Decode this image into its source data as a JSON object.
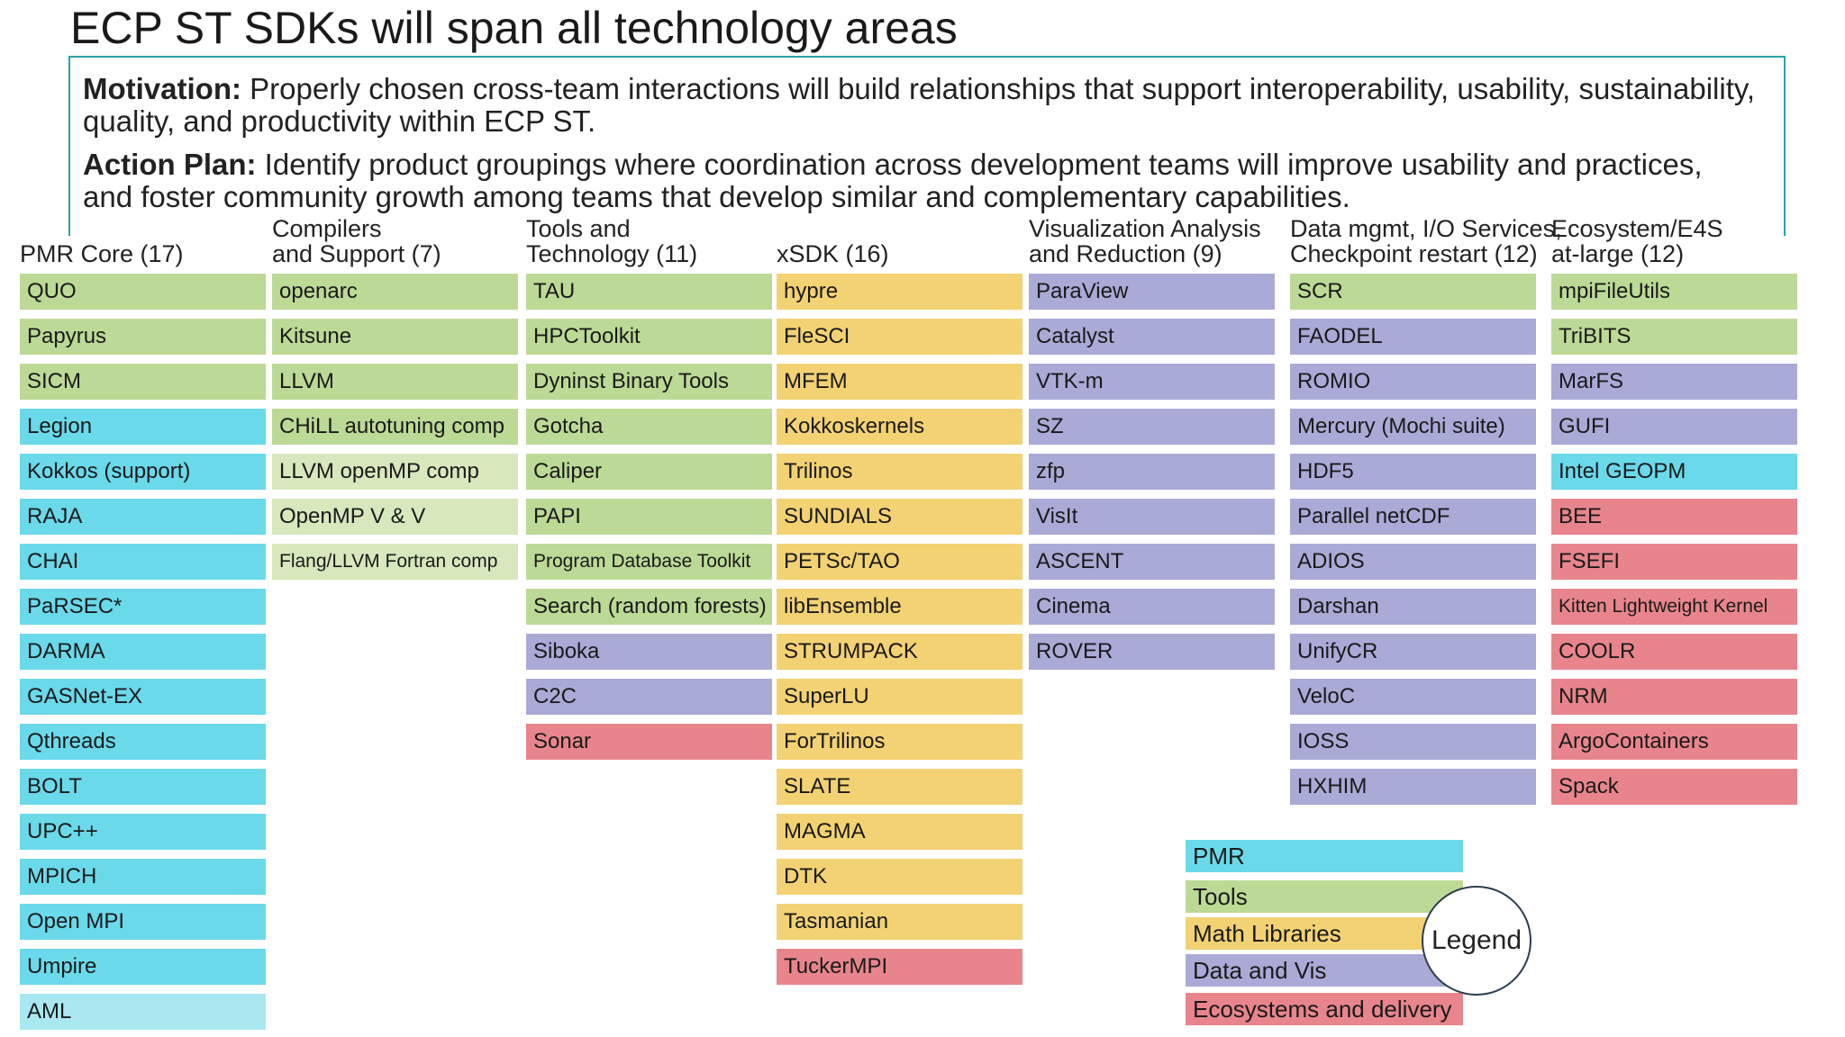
{
  "title": "ECP ST SDKs will span all technology areas",
  "motivation": {
    "label": "Motivation:",
    "text": " Properly chosen cross-team interactions will build relationships that support interoperability, usability, sustainability, quality, and productivity within ECP ST."
  },
  "action_plan": {
    "label": "Action Plan:",
    "text": " Identify product groupings where coordination across development teams will improve usability and practices, and foster community growth among teams that develop similar and complementary capabilities."
  },
  "columns": [
    {
      "header_lines": [
        "PMR Core (17)"
      ],
      "items": [
        {
          "label": "QUO",
          "category": "tools"
        },
        {
          "label": "Papyrus",
          "category": "tools"
        },
        {
          "label": "SICM",
          "category": "tools"
        },
        {
          "label": "Legion",
          "category": "pmr"
        },
        {
          "label": "Kokkos (support)",
          "category": "pmr"
        },
        {
          "label": "RAJA",
          "category": "pmr"
        },
        {
          "label": "CHAI",
          "category": "pmr"
        },
        {
          "label": "PaRSEC*",
          "category": "pmr"
        },
        {
          "label": "DARMA",
          "category": "pmr"
        },
        {
          "label": "GASNet-EX",
          "category": "pmr"
        },
        {
          "label": "Qthreads",
          "category": "pmr"
        },
        {
          "label": "BOLT",
          "category": "pmr"
        },
        {
          "label": "UPC++",
          "category": "pmr"
        },
        {
          "label": "MPICH",
          "category": "pmr"
        },
        {
          "label": "Open MPI",
          "category": "pmr"
        },
        {
          "label": "Umpire",
          "category": "pmr"
        },
        {
          "label": "AML",
          "category": "pmr-light"
        }
      ]
    },
    {
      "header_lines": [
        "Compilers",
        "and Support (7)"
      ],
      "items": [
        {
          "label": "openarc",
          "category": "tools"
        },
        {
          "label": "Kitsune",
          "category": "tools"
        },
        {
          "label": "LLVM",
          "category": "tools"
        },
        {
          "label": "CHiLL autotuning comp",
          "category": "tools"
        },
        {
          "label": "LLVM openMP comp",
          "category": "tools-light"
        },
        {
          "label": "OpenMP V & V",
          "category": "tools-light"
        },
        {
          "label": "Flang/LLVM Fortran comp",
          "category": "tools-light",
          "small": true
        }
      ]
    },
    {
      "header_lines": [
        "Tools and",
        "Technology (11)"
      ],
      "items": [
        {
          "label": "TAU",
          "category": "tools"
        },
        {
          "label": "HPCToolkit",
          "category": "tools"
        },
        {
          "label": "Dyninst Binary Tools",
          "category": "tools"
        },
        {
          "label": "Gotcha",
          "category": "tools"
        },
        {
          "label": "Caliper",
          "category": "tools"
        },
        {
          "label": "PAPI",
          "category": "tools"
        },
        {
          "label": "Program Database Toolkit",
          "category": "tools",
          "small": true
        },
        {
          "label": "Search (random forests)",
          "category": "tools"
        },
        {
          "label": "Siboka",
          "category": "datavis"
        },
        {
          "label": "C2C",
          "category": "datavis"
        },
        {
          "label": "Sonar",
          "category": "eco"
        }
      ]
    },
    {
      "header_lines": [
        "xSDK (16)"
      ],
      "items": [
        {
          "label": "hypre",
          "category": "math"
        },
        {
          "label": "FleSCI",
          "category": "math"
        },
        {
          "label": "MFEM",
          "category": "math"
        },
        {
          "label": "Kokkoskernels",
          "category": "math"
        },
        {
          "label": "Trilinos",
          "category": "math"
        },
        {
          "label": "SUNDIALS",
          "category": "math"
        },
        {
          "label": "PETSc/TAO",
          "category": "math"
        },
        {
          "label": "libEnsemble",
          "category": "math"
        },
        {
          "label": "STRUMPACK",
          "category": "math"
        },
        {
          "label": "SuperLU",
          "category": "math"
        },
        {
          "label": "ForTrilinos",
          "category": "math"
        },
        {
          "label": "SLATE",
          "category": "math"
        },
        {
          "label": "MAGMA",
          "category": "math"
        },
        {
          "label": "DTK",
          "category": "math"
        },
        {
          "label": "Tasmanian",
          "category": "math"
        },
        {
          "label": "TuckerMPI",
          "category": "eco"
        }
      ]
    },
    {
      "header_lines": [
        "Visualization Analysis",
        "and Reduction (9)"
      ],
      "items": [
        {
          "label": "ParaView",
          "category": "datavis"
        },
        {
          "label": "Catalyst",
          "category": "datavis"
        },
        {
          "label": "VTK-m",
          "category": "datavis"
        },
        {
          "label": "SZ",
          "category": "datavis"
        },
        {
          "label": "zfp",
          "category": "datavis"
        },
        {
          "label": "VisIt",
          "category": "datavis"
        },
        {
          "label": "ASCENT",
          "category": "datavis"
        },
        {
          "label": "Cinema",
          "category": "datavis"
        },
        {
          "label": "ROVER",
          "category": "datavis"
        }
      ]
    },
    {
      "header_lines": [
        "Data mgmt, I/O Services,",
        "Checkpoint restart (12)"
      ],
      "items": [
        {
          "label": "SCR",
          "category": "tools"
        },
        {
          "label": "FAODEL",
          "category": "datavis"
        },
        {
          "label": "ROMIO",
          "category": "datavis"
        },
        {
          "label": "Mercury (Mochi suite)",
          "category": "datavis"
        },
        {
          "label": "HDF5",
          "category": "datavis"
        },
        {
          "label": "Parallel netCDF",
          "category": "datavis"
        },
        {
          "label": "ADIOS",
          "category": "datavis"
        },
        {
          "label": "Darshan",
          "category": "datavis"
        },
        {
          "label": "UnifyCR",
          "category": "datavis"
        },
        {
          "label": "VeloC",
          "category": "datavis"
        },
        {
          "label": "IOSS",
          "category": "datavis"
        },
        {
          "label": "HXHIM",
          "category": "datavis"
        }
      ]
    },
    {
      "header_lines": [
        "Ecosystem/E4S",
        "at-large (12)"
      ],
      "items": [
        {
          "label": "mpiFileUtils",
          "category": "tools"
        },
        {
          "label": "TriBITS",
          "category": "tools"
        },
        {
          "label": "MarFS",
          "category": "datavis"
        },
        {
          "label": "GUFI",
          "category": "datavis"
        },
        {
          "label": "Intel GEOPM",
          "category": "pmr"
        },
        {
          "label": "BEE",
          "category": "eco"
        },
        {
          "label": "FSEFI",
          "category": "eco"
        },
        {
          "label": "Kitten Lightweight Kernel",
          "category": "eco",
          "small": true
        },
        {
          "label": "COOLR",
          "category": "eco"
        },
        {
          "label": "NRM",
          "category": "eco"
        },
        {
          "label": "ArgoContainers",
          "category": "eco"
        },
        {
          "label": "Spack",
          "category": "eco"
        }
      ]
    }
  ],
  "legend": {
    "title": "Legend",
    "items": [
      {
        "label": "PMR",
        "category": "pmr"
      },
      {
        "label": "Tools",
        "category": "tools"
      },
      {
        "label": "Math Libraries",
        "category": "math"
      },
      {
        "label": "Data and Vis",
        "category": "datavis"
      },
      {
        "label": "Ecosystems and delivery",
        "category": "eco"
      }
    ]
  },
  "colors": {
    "pmr": "#6ad9ea",
    "tools": "#bdd996",
    "math": "#f3d274",
    "datavis": "#a9aad6",
    "eco": "#e8858c",
    "frame": "#2aa2a6"
  }
}
